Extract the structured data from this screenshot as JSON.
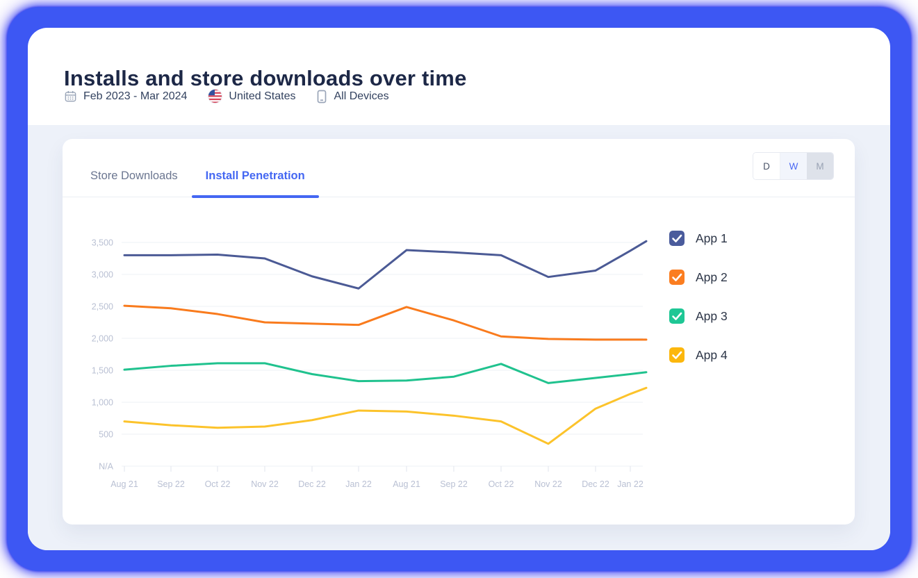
{
  "header": {
    "title": "Installs and store downloads over time",
    "filters": [
      {
        "icon": "calendar-icon",
        "label": "Feb 2023 - Mar 2024"
      },
      {
        "icon": "us-flag-icon",
        "label": "United States"
      },
      {
        "icon": "device-icon",
        "label": "All Devices"
      }
    ]
  },
  "panel": {
    "tabs": [
      {
        "label": "Store Downloads",
        "active": false
      },
      {
        "label": "Install Penetration",
        "active": true
      }
    ],
    "granularity": [
      {
        "label": "D",
        "state": "default"
      },
      {
        "label": "W",
        "state": "active"
      },
      {
        "label": "M",
        "state": "muted"
      }
    ]
  },
  "colors": {
    "accent_blue": "#4467f2",
    "frame_blue": "#3d57f3",
    "content_background": "#edf1f9",
    "grid_line": "#f1f3f7",
    "axis_label": "#b9c0d3"
  },
  "chart_data": {
    "type": "line",
    "title": "",
    "xlabel": "",
    "ylabel": "",
    "grid": "horizontal",
    "legend_position": "right",
    "ylim": [
      0,
      3500
    ],
    "y_axis": {
      "ticks": [
        "3,500",
        "3,000",
        "2,500",
        "2,000",
        "1,500",
        "1,000",
        "500",
        "N/A"
      ],
      "tick_values": [
        3500,
        3000,
        2500,
        2000,
        1500,
        1000,
        500,
        0
      ]
    },
    "categories": [
      "Aug 21",
      "Sep 22",
      "Oct 22",
      "Nov 22",
      "Dec 22",
      "Jan 22",
      "Aug 21",
      "Sep 22",
      "Oct 22",
      "Nov 22",
      "Dec 22",
      "Jan 22"
    ],
    "series": [
      {
        "name": "App 1",
        "color": "#4b5a95",
        "swatch": "#4a5b9c",
        "checked": true,
        "values": [
          3300,
          3300,
          3310,
          3250,
          2970,
          2780,
          3380,
          3345,
          3300,
          2960,
          3060,
          3370
        ],
        "edge_value": 3520
      },
      {
        "name": "App 2",
        "color": "#f97b1d",
        "swatch": "#fb7d20",
        "checked": true,
        "values": [
          2510,
          2470,
          2380,
          2250,
          2230,
          2210,
          2490,
          2280,
          2030,
          1990,
          1980,
          1980
        ],
        "edge_value": 1980
      },
      {
        "name": "App 3",
        "color": "#20c28e",
        "swatch": "#1ec795",
        "checked": true,
        "values": [
          1510,
          1570,
          1610,
          1610,
          1440,
          1330,
          1340,
          1400,
          1600,
          1300,
          1380,
          1440
        ],
        "edge_value": 1470
      },
      {
        "name": "App 4",
        "color": "#fcc32b",
        "swatch": "#fcb70d",
        "checked": true,
        "values": [
          700,
          640,
          600,
          620,
          720,
          870,
          855,
          790,
          700,
          350,
          900,
          1130
        ],
        "edge_value": 1225
      }
    ]
  }
}
